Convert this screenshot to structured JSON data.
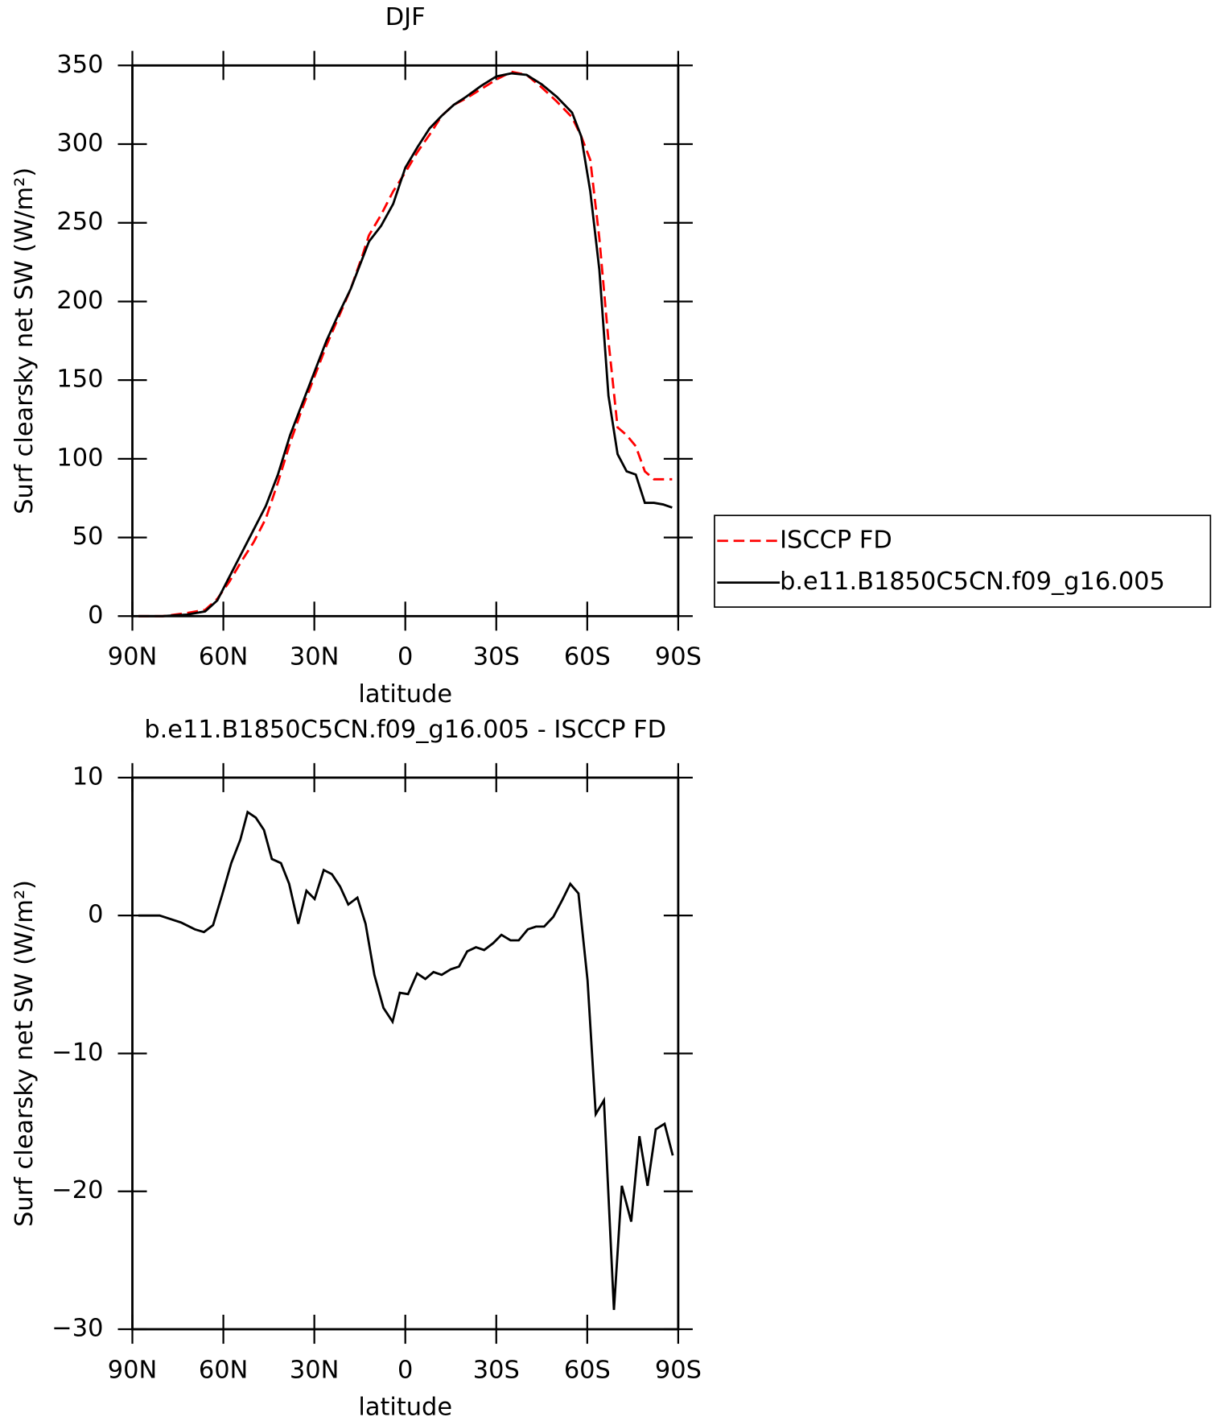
{
  "chart_data": [
    {
      "type": "line",
      "title": "DJF",
      "xlabel": "latitude",
      "ylabel": "Surf clearsky net SW (W/m²)",
      "xlim": [
        90,
        -90
      ],
      "xticks": [
        {
          "value": 90,
          "label": "90N"
        },
        {
          "value": 60,
          "label": "60N"
        },
        {
          "value": 30,
          "label": "30N"
        },
        0,
        {
          "value": -30,
          "label": "30S"
        },
        {
          "value": -60,
          "label": "60S"
        },
        {
          "value": -90,
          "label": "90S"
        }
      ],
      "ylim": [
        0,
        350
      ],
      "yticks": [
        0,
        50,
        100,
        150,
        200,
        250,
        300,
        350
      ],
      "legend": "right",
      "series": [
        {
          "name": "ISCCP FD",
          "color": "#ff0000",
          "dash": true,
          "x": [
            88,
            80,
            72,
            66,
            62,
            58,
            54,
            50,
            46,
            42,
            38,
            34,
            30,
            26,
            22,
            18,
            14,
            12,
            8,
            4,
            0,
            -4,
            -8,
            -12,
            -16,
            -20,
            -25,
            -30,
            -35,
            -40,
            -45,
            -50,
            -55,
            -58,
            -61,
            -64,
            -67,
            -70,
            -73,
            -76,
            -79,
            -82,
            -85,
            -88
          ],
          "values": [
            0,
            0,
            2,
            4,
            11,
            22,
            35,
            47,
            62,
            85,
            110,
            132,
            152,
            172,
            190,
            208,
            230,
            242,
            255,
            270,
            282,
            295,
            306,
            318,
            325,
            329,
            335,
            341,
            346,
            344,
            336,
            327,
            317,
            305,
            290,
            240,
            175,
            120,
            115,
            108,
            92,
            87,
            87,
            87
          ]
        },
        {
          "name": "b.e11.B1850C5CN.f09_g16.005",
          "color": "#000000",
          "dash": false,
          "x": [
            88,
            80,
            72,
            66,
            62,
            58,
            54,
            50,
            46,
            42,
            38,
            34,
            30,
            26,
            22,
            18,
            14,
            12,
            8,
            4,
            0,
            -4,
            -8,
            -12,
            -16,
            -20,
            -25,
            -30,
            -35,
            -40,
            -45,
            -50,
            -55,
            -58,
            -61,
            -64,
            -67,
            -70,
            -73,
            -76,
            -79,
            -82,
            -85,
            -88
          ],
          "values": [
            0,
            0,
            1,
            3,
            10,
            25,
            40,
            55,
            70,
            90,
            115,
            135,
            155,
            175,
            192,
            208,
            228,
            238,
            248,
            262,
            285,
            298,
            310,
            318,
            325,
            330,
            337,
            343,
            345,
            344,
            338,
            330,
            320,
            305,
            270,
            220,
            140,
            103,
            92,
            90,
            72,
            72,
            71,
            69
          ]
        }
      ]
    },
    {
      "type": "line",
      "title": "b.e11.B1850C5CN.f09_g16.005 - ISCCP FD",
      "xlabel": "latitude",
      "ylabel": "Surf clearsky net SW (W/m²)",
      "xlim": [
        90,
        -90
      ],
      "xticks": [
        {
          "value": 90,
          "label": "90N"
        },
        {
          "value": 60,
          "label": "60N"
        },
        {
          "value": 30,
          "label": "30N"
        },
        0,
        {
          "value": -30,
          "label": "30S"
        },
        {
          "value": -60,
          "label": "60S"
        },
        {
          "value": -90,
          "label": "90S"
        }
      ],
      "ylim": [
        -30,
        10
      ],
      "yticks": [
        {
          "value": -30,
          "label": "−30"
        },
        {
          "value": -20,
          "label": "−20"
        },
        {
          "value": -10,
          "label": "−10"
        },
        0,
        10
      ],
      "series": [
        {
          "color": "#000000",
          "dash": false,
          "x": [
            88,
            81,
            74,
            69.4,
            66.4,
            63.4,
            60.4,
            57.4,
            54.4,
            52,
            49.3,
            46.6,
            44,
            41,
            38.3,
            35.3,
            32.6,
            29.9,
            26.9,
            24.2,
            21.5,
            18.8,
            15.8,
            13.1,
            10.2,
            7.2,
            4.2,
            1.8,
            -0.9,
            -3.9,
            -6.6,
            -9.3,
            -12,
            -15,
            -17.7,
            -20.4,
            -23.3,
            -26,
            -29,
            -31.7,
            -34.7,
            -37.4,
            -40.4,
            -43.1,
            -45.8,
            -48.8,
            -51.7,
            -54.4,
            -57.1,
            -60.1,
            -62.8,
            -65.5,
            -68.8,
            -71.4,
            -74.5,
            -77.2,
            -79.9,
            -82.6,
            -85.5,
            -88.2
          ],
          "values": [
            0,
            0,
            -0.5,
            -1,
            -1.2,
            -0.7,
            1.5,
            3.8,
            5.5,
            7.5,
            7.1,
            6.2,
            4.1,
            3.8,
            2.3,
            -0.6,
            1.8,
            1.2,
            3.3,
            3,
            2.1,
            0.8,
            1.3,
            -0.6,
            -4.3,
            -6.7,
            -7.7,
            -5.6,
            -5.7,
            -4.2,
            -4.6,
            -4.1,
            -4.3,
            -3.9,
            -3.7,
            -2.6,
            -2.3,
            -2.5,
            -2,
            -1.4,
            -1.8,
            -1.8,
            -1,
            -0.8,
            -0.8,
            -0.1,
            1.1,
            2.3,
            1.6,
            -4.7,
            -14.4,
            -13.4,
            -28.6,
            -19.6,
            -22.2,
            -16,
            -19.6,
            -15.5,
            -15.1,
            -17.4
          ]
        }
      ]
    }
  ]
}
